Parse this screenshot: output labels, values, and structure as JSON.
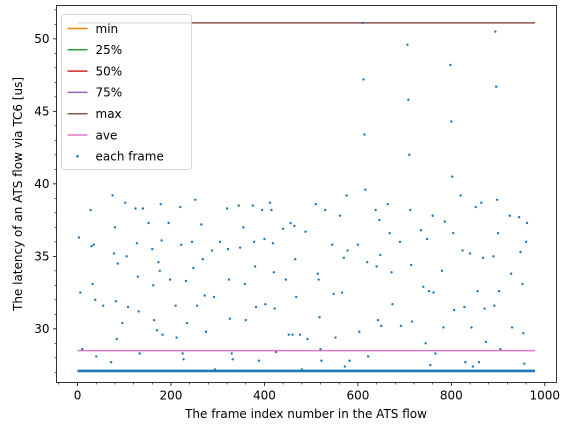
{
  "chart_data": {
    "type": "line",
    "xlabel": "The frame index number in the ATS flow",
    "ylabel": "The latency of an ATS flow via TC6 [us]",
    "xlim": [
      -45,
      1025
    ],
    "ylim": [
      26.3,
      52.3
    ],
    "x_ticks": [
      0,
      200,
      400,
      600,
      800,
      1000
    ],
    "y_ticks": [
      30,
      35,
      40,
      45,
      50
    ],
    "grid": false,
    "legend_position": "upper left",
    "series": [
      {
        "name": "min",
        "color": "#ff7f0e",
        "kind": "hline",
        "y": 27.1,
        "x_range": [
          0,
          979
        ]
      },
      {
        "name": "25%",
        "color": "#2ca02c",
        "kind": "hline",
        "y": 27.1,
        "x_range": [
          0,
          979
        ]
      },
      {
        "name": "50%",
        "color": "#d62728",
        "kind": "hline",
        "y": 27.1,
        "x_range": [
          0,
          979
        ]
      },
      {
        "name": "75%",
        "color": "#9467bd",
        "kind": "hline",
        "y": 27.1,
        "x_range": [
          0,
          979
        ]
      },
      {
        "name": "max",
        "color": "#8c564b",
        "kind": "hline",
        "y": 51.1,
        "x_range": [
          0,
          979
        ]
      },
      {
        "name": "ave",
        "color": "#e377c2",
        "kind": "hline",
        "y": 28.5,
        "x_range": [
          0,
          979
        ]
      },
      {
        "name": "each frame",
        "color": "#1f77b4",
        "kind": "scatter",
        "baseline": {
          "y": 27.1,
          "x_range": [
            0,
            979
          ]
        },
        "points": [
          [
            3,
            36.3
          ],
          [
            6,
            32.5
          ],
          [
            10,
            28.6
          ],
          [
            28,
            38.2
          ],
          [
            30,
            35.7
          ],
          [
            32,
            33.1
          ],
          [
            35,
            35.8
          ],
          [
            38,
            32.0
          ],
          [
            40,
            28.1
          ],
          [
            55,
            31.6
          ],
          [
            72,
            27.7
          ],
          [
            75,
            39.2
          ],
          [
            78,
            35.2
          ],
          [
            80,
            37.0
          ],
          [
            82,
            31.9
          ],
          [
            84,
            29.3
          ],
          [
            86,
            34.5
          ],
          [
            96,
            30.4
          ],
          [
            102,
            38.7
          ],
          [
            105,
            35.0
          ],
          [
            108,
            31.5
          ],
          [
            124,
            38.3
          ],
          [
            127,
            35.9
          ],
          [
            129,
            33.6
          ],
          [
            131,
            31.2
          ],
          [
            133,
            28.3
          ],
          [
            140,
            38.3
          ],
          [
            152,
            37.3
          ],
          [
            160,
            35.5
          ],
          [
            162,
            33.0
          ],
          [
            164,
            30.6
          ],
          [
            170,
            29.9
          ],
          [
            173,
            34.6
          ],
          [
            176,
            34.0
          ],
          [
            178,
            38.6
          ],
          [
            180,
            36.1
          ],
          [
            182,
            29.6
          ],
          [
            195,
            37.3
          ],
          [
            198,
            33.4
          ],
          [
            210,
            31.6
          ],
          [
            212,
            29.4
          ],
          [
            220,
            38.4
          ],
          [
            222,
            35.8
          ],
          [
            225,
            28.3
          ],
          [
            227,
            27.9
          ],
          [
            232,
            33.3
          ],
          [
            234,
            30.4
          ],
          [
            245,
            36.0
          ],
          [
            248,
            34.2
          ],
          [
            252,
            38.9
          ],
          [
            256,
            31.6
          ],
          [
            265,
            37.2
          ],
          [
            268,
            34.8
          ],
          [
            272,
            32.3
          ],
          [
            275,
            29.8
          ],
          [
            288,
            35.4
          ],
          [
            292,
            32.2
          ],
          [
            294,
            27.2
          ],
          [
            305,
            36.0
          ],
          [
            320,
            38.3
          ],
          [
            322,
            35.5
          ],
          [
            324,
            33.4
          ],
          [
            326,
            30.7
          ],
          [
            330,
            28.3
          ],
          [
            332,
            27.9
          ],
          [
            345,
            38.5
          ],
          [
            348,
            35.6
          ],
          [
            355,
            37.0
          ],
          [
            358,
            33.1
          ],
          [
            360,
            30.6
          ],
          [
            375,
            38.5
          ],
          [
            378,
            36.0
          ],
          [
            380,
            34.3
          ],
          [
            382,
            31.5
          ],
          [
            388,
            27.8
          ],
          [
            395,
            38.2
          ],
          [
            400,
            36.2
          ],
          [
            402,
            31.7
          ],
          [
            412,
            38.7
          ],
          [
            415,
            38.2
          ],
          [
            418,
            35.9
          ],
          [
            420,
            33.9
          ],
          [
            422,
            31.4
          ],
          [
            425,
            28.4
          ],
          [
            440,
            36.9
          ],
          [
            446,
            33.4
          ],
          [
            452,
            29.6
          ],
          [
            456,
            37.3
          ],
          [
            460,
            29.6
          ],
          [
            464,
            37.1
          ],
          [
            466,
            34.8
          ],
          [
            468,
            32.2
          ],
          [
            476,
            29.6
          ],
          [
            480,
            27.2
          ],
          [
            488,
            36.7
          ],
          [
            492,
            29.3
          ],
          [
            510,
            38.6
          ],
          [
            514,
            33.8
          ],
          [
            516,
            33.4
          ],
          [
            518,
            30.8
          ],
          [
            520,
            28.6
          ],
          [
            522,
            27.8
          ],
          [
            530,
            38.2
          ],
          [
            545,
            35.8
          ],
          [
            548,
            32.4
          ],
          [
            552,
            29.4
          ],
          [
            562,
            37.8
          ],
          [
            566,
            32.5
          ],
          [
            570,
            34.9
          ],
          [
            572,
            27.4
          ],
          [
            576,
            39.2
          ],
          [
            578,
            35.4
          ],
          [
            582,
            27.8
          ],
          [
            600,
            35.8
          ],
          [
            603,
            29.8
          ],
          [
            610,
            51.1
          ],
          [
            612,
            47.2
          ],
          [
            614,
            43.4
          ],
          [
            616,
            39.6
          ],
          [
            620,
            34.6
          ],
          [
            622,
            28.1
          ],
          [
            638,
            38.2
          ],
          [
            640,
            34.3
          ],
          [
            643,
            30.6
          ],
          [
            646,
            37.5
          ],
          [
            648,
            35.1
          ],
          [
            650,
            30.2
          ],
          [
            664,
            38.6
          ],
          [
            668,
            36.6
          ],
          [
            672,
            33.9
          ],
          [
            674,
            31.7
          ],
          [
            690,
            36.0
          ],
          [
            692,
            30.2
          ],
          [
            706,
            49.6
          ],
          [
            708,
            45.8
          ],
          [
            710,
            42.0
          ],
          [
            712,
            38.2
          ],
          [
            714,
            34.4
          ],
          [
            716,
            30.5
          ],
          [
            735,
            36.8
          ],
          [
            740,
            32.9
          ],
          [
            745,
            29.0
          ],
          [
            748,
            36.2
          ],
          [
            752,
            32.6
          ],
          [
            755,
            27.5
          ],
          [
            760,
            37.8
          ],
          [
            762,
            32.5
          ],
          [
            766,
            28.3
          ],
          [
            780,
            34.0
          ],
          [
            783,
            30.1
          ],
          [
            786,
            37.4
          ],
          [
            798,
            48.2
          ],
          [
            800,
            44.3
          ],
          [
            802,
            40.5
          ],
          [
            804,
            36.6
          ],
          [
            806,
            31.3
          ],
          [
            820,
            39.2
          ],
          [
            824,
            35.4
          ],
          [
            828,
            31.5
          ],
          [
            830,
            27.7
          ],
          [
            840,
            35.2
          ],
          [
            843,
            30.1
          ],
          [
            846,
            27.4
          ],
          [
            852,
            38.4
          ],
          [
            856,
            32.6
          ],
          [
            859,
            27.7
          ],
          [
            864,
            38.7
          ],
          [
            868,
            34.9
          ],
          [
            871,
            31.4
          ],
          [
            874,
            29.1
          ],
          [
            890,
            35.0
          ],
          [
            892,
            31.6
          ],
          [
            894,
            50.5
          ],
          [
            896,
            46.7
          ],
          [
            898,
            38.9
          ],
          [
            900,
            36.6
          ],
          [
            902,
            32.6
          ],
          [
            905,
            28.6
          ],
          [
            925,
            37.8
          ],
          [
            928,
            33.8
          ],
          [
            930,
            30.1
          ],
          [
            945,
            37.7
          ],
          [
            948,
            35.3
          ],
          [
            952,
            33.1
          ],
          [
            954,
            29.7
          ],
          [
            956,
            27.6
          ],
          [
            960,
            36.0
          ],
          [
            962,
            37.3
          ]
        ]
      }
    ]
  }
}
